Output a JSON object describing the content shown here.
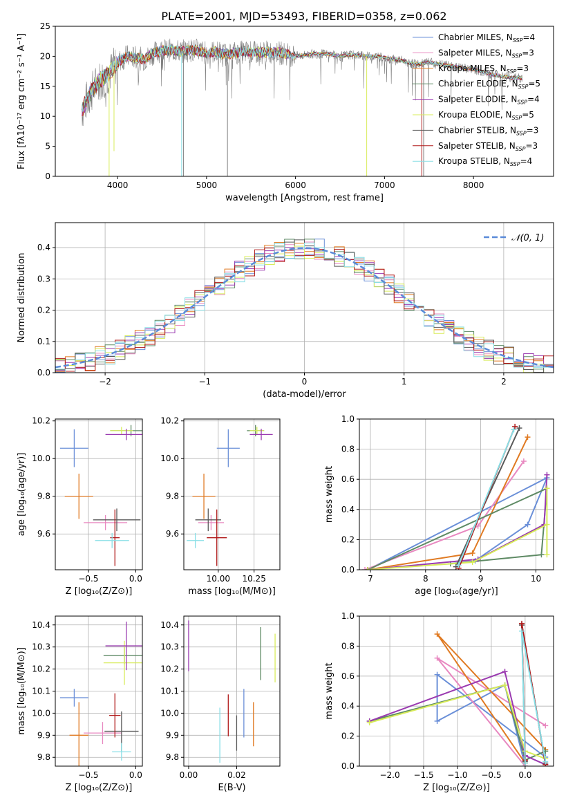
{
  "title": "PLATE=2001, MJD=53493, FIBERID=0358, z=0.062",
  "colors": {
    "chabrier_miles": "#6a8fd8",
    "salpeter_miles": "#e888c0",
    "kroupa_miles": "#e07a22",
    "chabrier_elodie": "#5e8a64",
    "salpeter_elodie": "#9a3ab0",
    "kroupa_elodie": "#d8ec5a",
    "chabrier_stelib": "#595959",
    "salpeter_stelib": "#b01818",
    "kroupa_stelib": "#88dfe6",
    "observed": "#808080",
    "normal": "#5a8ad8",
    "grid": "#b0b0b0"
  },
  "chart_data": [
    {
      "id": "spectrum",
      "type": "line",
      "xlabel": "wavelength [Angstrom, rest frame]",
      "ylabel": "Flux [fλ10⁻¹⁷ erg cm⁻² s⁻¹ A⁻¹]",
      "xlim": [
        3300,
        8900
      ],
      "ylim": [
        0,
        25
      ],
      "xticks": [
        "4000",
        "5000",
        "6000",
        "7000",
        "8000"
      ],
      "yticks": [
        "0",
        "5",
        "10",
        "15",
        "20",
        "25"
      ],
      "grid": false,
      "legend_position": "top-right",
      "continuum": [
        [
          3600,
          11
        ],
        [
          3700,
          14
        ],
        [
          3800,
          16
        ],
        [
          3900,
          17
        ],
        [
          4000,
          19
        ],
        [
          4100,
          20
        ],
        [
          4200,
          19.8
        ],
        [
          4300,
          19.5
        ],
        [
          4400,
          20.5
        ],
        [
          4500,
          21
        ],
        [
          4600,
          21
        ],
        [
          4700,
          20.8
        ],
        [
          4800,
          21
        ],
        [
          4900,
          21
        ],
        [
          5000,
          20.5
        ],
        [
          5100,
          20.8
        ],
        [
          5200,
          20.3
        ],
        [
          5300,
          20.5
        ],
        [
          5400,
          20.7
        ],
        [
          5500,
          20.6
        ],
        [
          5600,
          20.6
        ],
        [
          5700,
          20.7
        ],
        [
          5800,
          20.7
        ],
        [
          5900,
          20.4
        ],
        [
          6000,
          20
        ],
        [
          6100,
          20.2
        ],
        [
          6200,
          20.4
        ],
        [
          6300,
          20.4
        ],
        [
          6400,
          20.3
        ],
        [
          6500,
          20
        ],
        [
          6600,
          20.2
        ],
        [
          6700,
          20.2
        ],
        [
          6800,
          20
        ],
        [
          6900,
          20
        ],
        [
          7000,
          19.8
        ],
        [
          7100,
          19.5
        ],
        [
          7200,
          19.3
        ],
        [
          7300,
          18.8
        ],
        [
          7400,
          18.7
        ],
        [
          7500,
          19
        ],
        [
          7600,
          18.7
        ],
        [
          7700,
          18.5
        ],
        [
          7800,
          18.2
        ],
        [
          7900,
          18
        ],
        [
          8000,
          17.8
        ],
        [
          8100,
          17.4
        ],
        [
          8200,
          17
        ],
        [
          8300,
          16.7
        ],
        [
          8400,
          16.5
        ],
        [
          8500,
          16.4
        ],
        [
          8550,
          16.3
        ]
      ],
      "legend": [
        {
          "label": "Chabrier MILES, N",
          "sub": "SSP",
          "suffix": "=4",
          "color_key": "chabrier_miles"
        },
        {
          "label": "Salpeter MILES, N",
          "sub": "SSP",
          "suffix": "=3",
          "color_key": "salpeter_miles"
        },
        {
          "label": "Kroupa MILES, N",
          "sub": "SSP",
          "suffix": "=3",
          "color_key": "kroupa_miles"
        },
        {
          "label": "Chabrier ELODIE, N",
          "sub": "SSP",
          "suffix": "=5",
          "color_key": "chabrier_elodie"
        },
        {
          "label": "Salpeter ELODIE, N",
          "sub": "SSP",
          "suffix": "=4",
          "color_key": "salpeter_elodie"
        },
        {
          "label": "Kroupa ELODIE, N",
          "sub": "SSP",
          "suffix": "=5",
          "color_key": "kroupa_elodie"
        },
        {
          "label": "Chabrier STELIB, N",
          "sub": "SSP",
          "suffix": "=3",
          "color_key": "chabrier_stelib"
        },
        {
          "label": "Salpeter STELIB, N",
          "sub": "SSP",
          "suffix": "=3",
          "color_key": "salpeter_stelib"
        },
        {
          "label": "Kroupa STELIB, N",
          "sub": "SSP",
          "suffix": "=4",
          "color_key": "kroupa_stelib"
        }
      ]
    },
    {
      "id": "residuals",
      "type": "line",
      "xlabel": "(data-model)/error",
      "ylabel": "Normed distribution",
      "xlim": [
        -2.5,
        2.5
      ],
      "ylim": [
        0,
        0.48
      ],
      "xticks": [
        "−2",
        "−1",
        "0",
        "1",
        "2"
      ],
      "yticks": [
        "0.0",
        "0.1",
        "0.2",
        "0.3",
        "0.4"
      ],
      "grid": true,
      "legend_position": "top-right",
      "legend_label": "𝒩(0, 1)",
      "bin_width": 0.1,
      "series_keys": [
        "chabrier_miles",
        "salpeter_miles",
        "kroupa_miles",
        "chabrier_elodie",
        "salpeter_elodie",
        "kroupa_elodie",
        "chabrier_stelib",
        "salpeter_stelib",
        "kroupa_stelib"
      ]
    },
    {
      "id": "age_vs_Z",
      "type": "scatter",
      "xlabel": "Z [log₁₀(Z/Z⊙)]",
      "ylabel": "age  [log₁₀(age/yr)]",
      "xlim": [
        -0.85,
        0.07
      ],
      "ylim": [
        9.41,
        10.21
      ],
      "xticks": [
        "−0.5",
        "0.0"
      ],
      "yticks": [
        "9.6",
        "9.8",
        "10.0",
        "10.2"
      ],
      "grid": true,
      "points": [
        {
          "key": "chabrier_miles",
          "x": -0.65,
          "y": 10.055,
          "xerr": 0.15,
          "yerr": 0.1
        },
        {
          "key": "kroupa_miles",
          "x": -0.6,
          "y": 9.8,
          "xerr": 0.15,
          "yerr": 0.12
        },
        {
          "key": "salpeter_miles",
          "x": -0.32,
          "y": 9.66,
          "xerr": 0.23,
          "yerr": 0.04
        },
        {
          "key": "chabrier_elodie",
          "x": -0.05,
          "y": 10.148,
          "xerr": 0.22,
          "yerr": 0.03
        },
        {
          "key": "kroupa_elodie",
          "x": -0.15,
          "y": 10.148,
          "xerr": 0.12,
          "yerr": 0.02
        },
        {
          "key": "salpeter_elodie",
          "x": -0.1,
          "y": 10.128,
          "xerr": 0.22,
          "yerr": 0.03
        },
        {
          "key": "chabrier_stelib",
          "x": -0.2,
          "y": 9.675,
          "xerr": 0.25,
          "yerr": 0.06
        },
        {
          "key": "salpeter_stelib",
          "x": -0.22,
          "y": 9.58,
          "xerr": 0.05,
          "yerr": 0.15
        },
        {
          "key": "kroupa_stelib",
          "x": -0.25,
          "y": 9.565,
          "xerr": 0.18,
          "yerr": 0.04
        }
      ]
    },
    {
      "id": "age_vs_mass",
      "type": "scatter",
      "xlabel": "mass [log₁₀(M/M⊙)]",
      "ylabel": "",
      "xlim": [
        9.76,
        10.43
      ],
      "ylim": [
        9.41,
        10.21
      ],
      "xticks": [
        "10.00",
        "10.25"
      ],
      "yticks": [
        "9.6",
        "9.8",
        "10.0",
        "10.2"
      ],
      "grid": true,
      "points": [
        {
          "key": "chabrier_miles",
          "x": 10.07,
          "y": 10.055,
          "xerr": 0.08,
          "yerr": 0.1
        },
        {
          "key": "kroupa_miles",
          "x": 9.9,
          "y": 9.8,
          "xerr": 0.08,
          "yerr": 0.12
        },
        {
          "key": "salpeter_miles",
          "x": 9.95,
          "y": 9.66,
          "xerr": 0.09,
          "yerr": 0.04
        },
        {
          "key": "chabrier_elodie",
          "x": 10.26,
          "y": 10.148,
          "xerr": 0.06,
          "yerr": 0.03
        },
        {
          "key": "kroupa_elodie",
          "x": 10.27,
          "y": 10.148,
          "xerr": 0.05,
          "yerr": 0.02
        },
        {
          "key": "salpeter_elodie",
          "x": 10.3,
          "y": 10.128,
          "xerr": 0.08,
          "yerr": 0.03
        },
        {
          "key": "chabrier_stelib",
          "x": 9.93,
          "y": 9.675,
          "xerr": 0.09,
          "yerr": 0.06
        },
        {
          "key": "salpeter_stelib",
          "x": 9.99,
          "y": 9.58,
          "xerr": 0.07,
          "yerr": 0.15
        },
        {
          "key": "kroupa_stelib",
          "x": 9.84,
          "y": 9.565,
          "xerr": 0.06,
          "yerr": 0.04
        }
      ]
    },
    {
      "id": "weight_vs_age",
      "type": "line",
      "xlabel": "age  [log₁₀(age/yr)]",
      "ylabel": "mass weight",
      "xlim": [
        6.8,
        10.32
      ],
      "ylim": [
        0,
        1
      ],
      "xticks": [
        "7",
        "8",
        "9",
        "10"
      ],
      "yticks": [
        "0.0",
        "0.2",
        "0.4",
        "0.6",
        "0.8",
        "1.0"
      ],
      "grid": true,
      "series": [
        {
          "key": "chabrier_miles",
          "points": [
            [
              8.9,
              0.06
            ],
            [
              9.85,
              0.3
            ],
            [
              10.2,
              0.61
            ],
            [
              6.95,
              0
            ]
          ]
        },
        {
          "key": "salpeter_miles",
          "points": [
            [
              6.9,
              0
            ],
            [
              8.95,
              0.29
            ],
            [
              9.78,
              0.72
            ]
          ]
        },
        {
          "key": "kroupa_miles",
          "points": [
            [
              6.95,
              0
            ],
            [
              8.85,
              0.11
            ],
            [
              9.85,
              0.88
            ]
          ]
        },
        {
          "key": "chabrier_elodie",
          "points": [
            [
              8.45,
              0.04
            ],
            [
              10.1,
              0.1
            ],
            [
              10.2,
              0.54
            ],
            [
              6.95,
              0
            ]
          ]
        },
        {
          "key": "salpeter_elodie",
          "points": [
            [
              6.95,
              0
            ],
            [
              8.95,
              0.07
            ],
            [
              10.15,
              0.3
            ],
            [
              10.2,
              0.63
            ]
          ]
        },
        {
          "key": "kroupa_elodie",
          "points": [
            [
              6.95,
              0
            ],
            [
              8.85,
              0.05
            ],
            [
              10.2,
              0.3
            ],
            [
              10.2,
              0.54
            ],
            [
              10.2,
              0.1
            ]
          ]
        },
        {
          "key": "chabrier_stelib",
          "points": [
            [
              8.55,
              0.02
            ],
            [
              9.7,
              0.94
            ]
          ]
        },
        {
          "key": "salpeter_stelib",
          "points": [
            [
              8.6,
              0.01
            ],
            [
              9.62,
              0.95
            ]
          ]
        },
        {
          "key": "kroupa_stelib",
          "points": [
            [
              8.6,
              0.03
            ],
            [
              9.6,
              0.93
            ]
          ]
        }
      ]
    },
    {
      "id": "mass_vs_Z",
      "type": "scatter",
      "xlabel": "Z [log₁₀(Z/Z⊙)]",
      "ylabel": "mass [log₁₀(M/M⊙)]",
      "xlim": [
        -0.85,
        0.07
      ],
      "ylim": [
        9.76,
        10.44
      ],
      "xticks": [
        "−0.5",
        "0.0"
      ],
      "yticks": [
        "9.8",
        "9.9",
        "10.0",
        "10.1",
        "10.2",
        "10.3",
        "10.4"
      ],
      "grid": true,
      "points": [
        {
          "key": "chabrier_miles",
          "x": -0.65,
          "y": 10.07,
          "xerr": 0.15,
          "yerr": 0.04
        },
        {
          "key": "kroupa_miles",
          "x": -0.6,
          "y": 9.9,
          "xerr": 0.1,
          "yerr": 0.15
        },
        {
          "key": "salpeter_miles",
          "x": -0.35,
          "y": 9.91,
          "xerr": 0.2,
          "yerr": 0.05
        },
        {
          "key": "chabrier_elodie",
          "x": -0.12,
          "y": 10.262,
          "xerr": 0.22,
          "yerr": 0.04
        },
        {
          "key": "kroupa_elodie",
          "x": -0.12,
          "y": 10.228,
          "xerr": 0.22,
          "yerr": 0.1
        },
        {
          "key": "salpeter_elodie",
          "x": -0.1,
          "y": 10.305,
          "xerr": 0.22,
          "yerr": 0.11
        },
        {
          "key": "chabrier_stelib",
          "x": -0.15,
          "y": 9.918,
          "xerr": 0.18,
          "yerr": 0.09
        },
        {
          "key": "salpeter_stelib",
          "x": -0.22,
          "y": 9.99,
          "xerr": 0.06,
          "yerr": 0.1
        },
        {
          "key": "kroupa_stelib",
          "x": -0.15,
          "y": 9.825,
          "xerr": 0.1,
          "yerr": 0.04
        }
      ]
    },
    {
      "id": "mass_vs_ebv",
      "type": "scatter",
      "xlabel": "E(B-V)",
      "ylabel": "",
      "xlim": [
        -0.002,
        0.038
      ],
      "ylim": [
        9.76,
        10.44
      ],
      "xticks": [
        "0.00",
        "0.02"
      ],
      "yticks": [
        "9.8",
        "9.9",
        "10.0",
        "10.1",
        "10.2",
        "10.3",
        "10.4"
      ],
      "grid": true,
      "points": [
        {
          "key": "salpeter_elodie",
          "x": 0.0,
          "y": 10.305,
          "yerr": 0.115
        },
        {
          "key": "chabrier_miles",
          "x": 0.023,
          "y": 10.0,
          "yerr": 0.11
        },
        {
          "key": "kroupa_miles",
          "x": 0.027,
          "y": 9.95,
          "yerr": 0.1
        },
        {
          "key": "chabrier_elodie",
          "x": 0.03,
          "y": 10.27,
          "yerr": 0.12
        },
        {
          "key": "kroupa_elodie",
          "x": 0.036,
          "y": 10.25,
          "yerr": 0.11
        },
        {
          "key": "chabrier_stelib",
          "x": 0.02,
          "y": 9.91,
          "yerr": 0.08
        },
        {
          "key": "salpeter_stelib",
          "x": 0.0165,
          "y": 9.99,
          "yerr": 0.095
        },
        {
          "key": "kroupa_stelib",
          "x": 0.013,
          "y": 9.9,
          "yerr": 0.125
        }
      ]
    },
    {
      "id": "weight_vs_Z",
      "type": "line",
      "xlabel": "Z [log₁₀(Z/Z⊙)]",
      "ylabel": "mass weight",
      "xlim": [
        -2.45,
        0.42
      ],
      "ylim": [
        0,
        1
      ],
      "xticks": [
        "−2.0",
        "−1.5",
        "−1.0",
        "−0.5",
        "0.0"
      ],
      "yticks": [
        "0.0",
        "0.2",
        "0.4",
        "0.6",
        "0.8",
        "1.0"
      ],
      "grid": true,
      "series": [
        {
          "key": "chabrier_miles",
          "points": [
            [
              0.3,
              0.06
            ],
            [
              -1.3,
              0.61
            ],
            [
              -1.3,
              0.3
            ],
            [
              -0.3,
              0.54
            ],
            [
              0,
              0
            ]
          ]
        },
        {
          "key": "salpeter_miles",
          "points": [
            [
              0.3,
              0.27
            ],
            [
              -1.3,
              0.72
            ],
            [
              0,
              0
            ]
          ]
        },
        {
          "key": "kroupa_miles",
          "points": [
            [
              0.3,
              0.11
            ],
            [
              -1.3,
              0.88
            ],
            [
              0,
              0.02
            ]
          ]
        },
        {
          "key": "chabrier_elodie",
          "points": [
            [
              -2.3,
              0.3
            ],
            [
              -0.3,
              0.54
            ],
            [
              0,
              0.04
            ],
            [
              0.3,
              0.1
            ]
          ]
        },
        {
          "key": "salpeter_elodie",
          "points": [
            [
              -2.3,
              0.3
            ],
            [
              -0.3,
              0.63
            ],
            [
              0,
              0.07
            ],
            [
              0.3,
              0.01
            ]
          ]
        },
        {
          "key": "kroupa_elodie",
          "points": [
            [
              -2.3,
              0.29
            ],
            [
              -0.3,
              0.54
            ],
            [
              0,
              0.1
            ],
            [
              0.3,
              0.05
            ]
          ]
        },
        {
          "key": "chabrier_stelib",
          "points": [
            [
              0.3,
              0.02
            ],
            [
              -0.05,
              0.94
            ],
            [
              0,
              0.03
            ]
          ]
        },
        {
          "key": "salpeter_stelib",
          "points": [
            [
              0.3,
              0.01
            ],
            [
              -0.05,
              0.95
            ],
            [
              0,
              0.04
            ]
          ]
        },
        {
          "key": "kroupa_stelib",
          "points": [
            [
              0.3,
              0.03
            ],
            [
              -0.05,
              0.9
            ],
            [
              0,
              0.02
            ]
          ]
        }
      ]
    }
  ]
}
